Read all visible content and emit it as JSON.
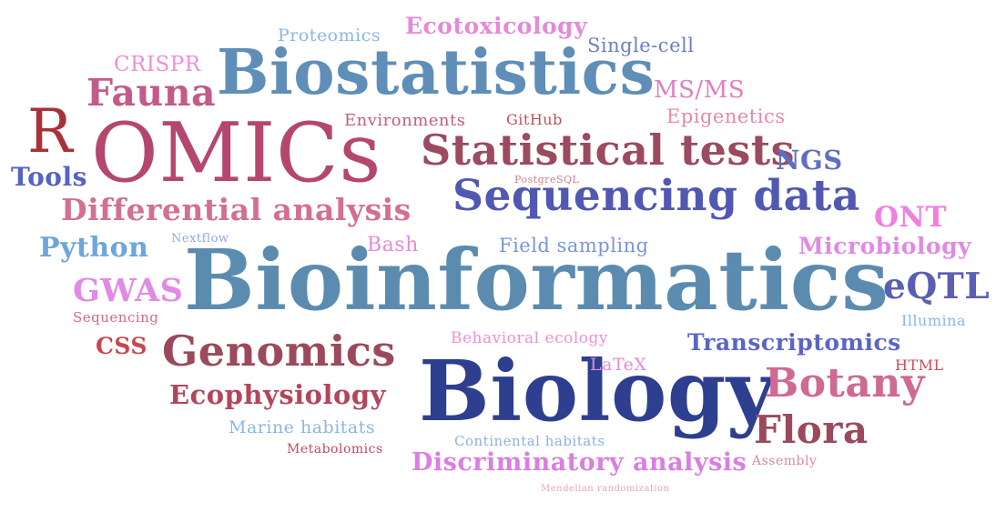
{
  "words": [
    {
      "id": "bioinformatics",
      "text": "Bioinformatics",
      "color": "#5b8cb0"
    },
    {
      "id": "biology",
      "text": "Biology",
      "color": "#2f3f8f"
    },
    {
      "id": "omics",
      "text": "OMICs",
      "color": "#b5476f"
    },
    {
      "id": "biostatistics",
      "text": "Biostatistics",
      "color": "#5f8eb8"
    },
    {
      "id": "sequencing-data",
      "text": "Sequencing data",
      "color": "#5058b2"
    },
    {
      "id": "statistical-tests",
      "text": "Statistical tests",
      "color": "#9b4a60"
    },
    {
      "id": "genomics",
      "text": "Genomics",
      "color": "#9b4a5c"
    },
    {
      "id": "differential-analysis",
      "text": "Differential analysis",
      "color": "#d36f91"
    },
    {
      "id": "botany",
      "text": "Botany",
      "color": "#cf6a91"
    },
    {
      "id": "flora",
      "text": "Flora",
      "color": "#9b4a5c"
    },
    {
      "id": "r",
      "text": "R",
      "color": "#a8323a"
    },
    {
      "id": "fauna",
      "text": "Fauna",
      "color": "#c45a8a"
    },
    {
      "id": "transcriptomics",
      "text": "Transcriptomics",
      "color": "#5a66c4"
    },
    {
      "id": "discriminatory-analysis",
      "text": "Discriminatory analysis",
      "color": "#d97fe2"
    },
    {
      "id": "ecophysiology",
      "text": "Ecophysiology",
      "color": "#b2465a"
    },
    {
      "id": "eqtl",
      "text": "eQTL",
      "color": "#5a5fb4"
    },
    {
      "id": "microbiology",
      "text": "Microbiology",
      "color": "#e08ae6"
    },
    {
      "id": "python",
      "text": "Python",
      "color": "#6da6da"
    },
    {
      "id": "gwas",
      "text": "GWAS",
      "color": "#e08ae6"
    },
    {
      "id": "ont",
      "text": "ONT",
      "color": "#f07fe0"
    },
    {
      "id": "ngs",
      "text": "NGS",
      "color": "#5e6fc2"
    },
    {
      "id": "tools",
      "text": "Tools",
      "color": "#5563c4"
    },
    {
      "id": "ecotoxicology",
      "text": "Ecotoxicology",
      "color": "#e58ad8"
    },
    {
      "id": "proteomics",
      "text": "Proteomics",
      "color": "#8ab6e6"
    },
    {
      "id": "single-cell",
      "text": "Single-cell",
      "color": "#6e7ec4"
    },
    {
      "id": "crispr",
      "text": "CRISPR",
      "color": "#f08ed6"
    },
    {
      "id": "ms-ms",
      "text": "MS/MS",
      "color": "#e17fc0"
    },
    {
      "id": "epigenetics",
      "text": "Epigenetics",
      "color": "#e58aa8"
    },
    {
      "id": "environments",
      "text": "Environments",
      "color": "#c0607a"
    },
    {
      "id": "github",
      "text": "GitHub",
      "color": "#c0505e"
    },
    {
      "id": "postgresql",
      "text": "PostgreSQL",
      "color": "#d0808a"
    },
    {
      "id": "nextflow",
      "text": "Nextflow",
      "color": "#8fa8e0"
    },
    {
      "id": "bash",
      "text": "Bash",
      "color": "#e58ad8"
    },
    {
      "id": "field-sampling",
      "text": "Field sampling",
      "color": "#7a95d8"
    },
    {
      "id": "sequencing",
      "text": "Sequencing",
      "color": "#d46a80"
    },
    {
      "id": "illumina",
      "text": "Illumina",
      "color": "#8ab6e6"
    },
    {
      "id": "css",
      "text": "CSS",
      "color": "#c8464e"
    },
    {
      "id": "behavioral-ecology",
      "text": "Behavioral ecology",
      "color": "#f08ed6"
    },
    {
      "id": "latex",
      "text": "LaTeX",
      "color": "#e58ad8"
    },
    {
      "id": "html",
      "text": "HTML",
      "color": "#d44a5a"
    },
    {
      "id": "marine-habitats",
      "text": "Marine habitats",
      "color": "#8ab6e6"
    },
    {
      "id": "metabolomics",
      "text": "Metabolomics",
      "color": "#c8465e"
    },
    {
      "id": "continental-habitats",
      "text": "Continental habitats",
      "color": "#8fb0e0"
    },
    {
      "id": "assembly",
      "text": "Assembly",
      "color": "#d88a9a"
    },
    {
      "id": "mendelian-randomization",
      "text": "Mendelian randomization",
      "color": "#e8a4c0"
    }
  ]
}
